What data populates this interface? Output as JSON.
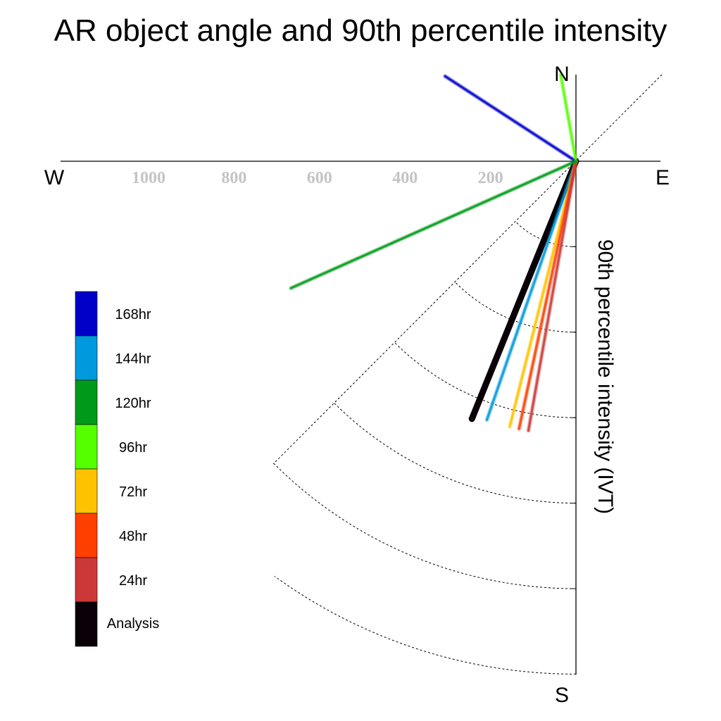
{
  "chart_data": {
    "type": "polar-vector",
    "title": "AR object angle and 90th percentile intensity",
    "ylabel": "90th percentile intensity (IVT)",
    "compass": {
      "north": "N",
      "east": "E",
      "south": "S",
      "west": "W"
    },
    "radial_ticks": [
      200,
      400,
      600,
      800,
      1000
    ],
    "radial_tick_labels": [
      "200",
      "400",
      "600",
      "800",
      "1000"
    ],
    "r_max": 1200,
    "grid": true,
    "legend_position": "left",
    "series": [
      {
        "name": "Analysis",
        "color": "#0a0008",
        "angle_deg": 202,
        "intensity": 650
      },
      {
        "name": "144hr",
        "color": "#0099dd",
        "angle_deg": 199,
        "intensity": 640
      },
      {
        "name": "72hr",
        "color": "#ffc200",
        "angle_deg": 194,
        "intensity": 640
      },
      {
        "name": "48hr",
        "color": "#ff4000",
        "angle_deg": 192,
        "intensity": 640
      },
      {
        "name": "24hr",
        "color": "#cc3838",
        "angle_deg": 190,
        "intensity": 640
      },
      {
        "name": "168hr",
        "color": "#0000c8",
        "angle_deg": 303,
        "intensity": 365
      },
      {
        "name": "96hr",
        "color": "#55ff00",
        "angle_deg": 350,
        "intensity": 205
      },
      {
        "name": "120hr",
        "color": "#009a1a",
        "angle_deg": 246,
        "intensity": 730
      }
    ],
    "legend": [
      {
        "label": "168hr",
        "color": "#0000c8"
      },
      {
        "label": "144hr",
        "color": "#0099dd"
      },
      {
        "label": "120hr",
        "color": "#009a1a"
      },
      {
        "label": "96hr",
        "color": "#55ff00"
      },
      {
        "label": "72hr",
        "color": "#ffc200"
      },
      {
        "label": "48hr",
        "color": "#ff4000"
      },
      {
        "label": "24hr",
        "color": "#cc3838"
      },
      {
        "label": "Analysis",
        "color": "#0a0008"
      }
    ]
  }
}
